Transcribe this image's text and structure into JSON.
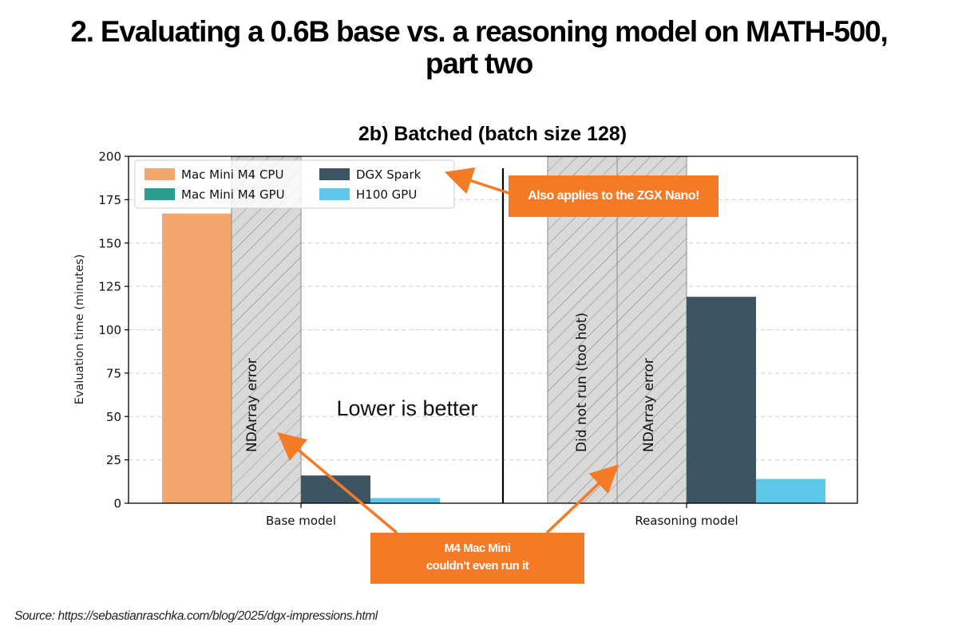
{
  "slide": {
    "title_line1": "2. Evaluating a 0.6B base vs. a reasoning model on MATH-500,",
    "title_line2": "part two",
    "source": "Source: https://sebastianraschka.com/blog/2025/dgx-impressions.html"
  },
  "annotations": {
    "lower_is_better": "Lower is better",
    "zgx_callout": "Also applies to the ZGX Nano!",
    "mac_callout_line1": "M4 Mac Mini",
    "mac_callout_line2": "couldn’t even run it",
    "base_gpu_label": "NDArray error",
    "reasoning_cpu_label": "Did not run (too hot)",
    "reasoning_gpu_label": "NDArray error"
  },
  "colors": {
    "mac_cpu": "#f3a76e",
    "mac_gpu": "#2a9d8f",
    "dgx": "#3d5563",
    "h100": "#5bc8ea",
    "hatch_bg": "#d9d9d9",
    "callout": "#f47a26"
  },
  "chart_data": {
    "type": "bar",
    "title": "2b) Batched (batch size 128)",
    "xlabel": "",
    "ylabel": "Evaluation time (minutes)",
    "ylim": [
      0,
      200
    ],
    "yticks": [
      0,
      25,
      50,
      75,
      100,
      125,
      150,
      175,
      200
    ],
    "grid": true,
    "legend_position": "top-left",
    "categories": [
      "Base model",
      "Reasoning model"
    ],
    "series": [
      {
        "name": "Mac Mini M4 CPU",
        "values": [
          167,
          null
        ],
        "status": [
          null,
          "Did not run (too hot)"
        ]
      },
      {
        "name": "Mac Mini M4 GPU",
        "values": [
          null,
          null
        ],
        "status": [
          "NDArray error",
          "NDArray error"
        ]
      },
      {
        "name": "DGX Spark",
        "values": [
          16,
          119
        ],
        "status": [
          null,
          null
        ]
      },
      {
        "name": "H100 GPU",
        "values": [
          3,
          14
        ],
        "status": [
          null,
          null
        ]
      }
    ]
  }
}
